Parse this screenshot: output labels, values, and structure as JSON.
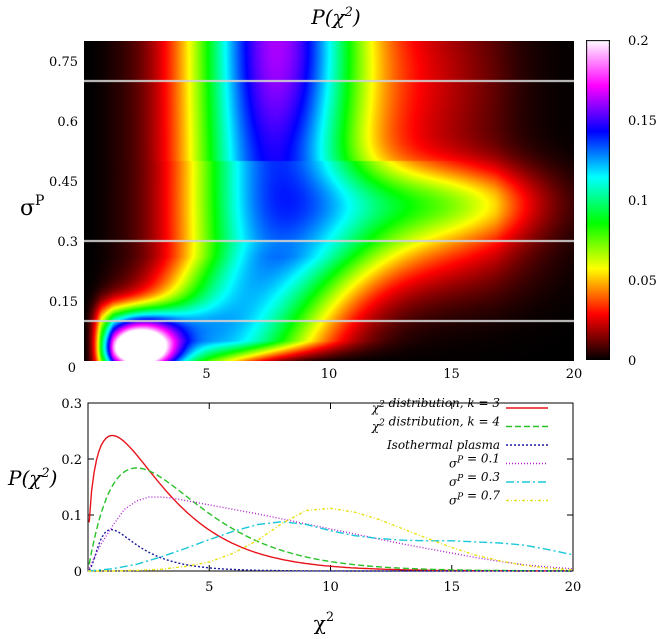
{
  "chart_data": [
    {
      "type": "heatmap",
      "title": "P(χ²)",
      "title_main": "P(χ",
      "title_sup": "2",
      "title_close": ")",
      "xlabel": "",
      "ylabel": "σ^P",
      "ylabel_main": "σ",
      "ylabel_sup": "P",
      "xlim": [
        0,
        20
      ],
      "ylim": [
        0,
        0.8
      ],
      "xticks": [
        5,
        10,
        15,
        20
      ],
      "xtick_labels": [
        "5",
        "10",
        "15",
        "20"
      ],
      "yticks": [
        0.15,
        0.3,
        0.45,
        0.6,
        0.75
      ],
      "ytick_labels": [
        "0.15",
        "0.3",
        "0.45",
        "0.6",
        "0.75"
      ],
      "origin_label": "0",
      "colorbar": {
        "range": [
          0,
          0.2
        ],
        "ticks": [
          0,
          0.05,
          0.1,
          0.15,
          0.2
        ],
        "tick_labels": [
          "0",
          "0.05",
          "0.1",
          "0.15",
          "0.2"
        ],
        "palette": [
          "#000000",
          "#ff0000",
          "#ffff00",
          "#00ff00",
          "#00ffff",
          "#0000ff",
          "#ff00ff",
          "#ffffff"
        ]
      },
      "reference_lines": {
        "sigma_values": [
          0.1,
          0.3,
          0.7
        ],
        "color": "#d0d0d0"
      }
    },
    {
      "type": "line",
      "title": "",
      "xlabel": "χ²",
      "xlabel_main": "χ",
      "xlabel_sup": "2",
      "ylabel": "P(χ²)",
      "ylabel_main": "P(χ",
      "ylabel_sup": "2",
      "ylabel_close": ")",
      "xlim": [
        0,
        20
      ],
      "ylim": [
        0,
        0.3
      ],
      "xticks": [
        5,
        10,
        15,
        20
      ],
      "xtick_labels": [
        "5",
        "10",
        "15",
        "20"
      ],
      "yticks": [
        0,
        0.1,
        0.2,
        0.3
      ],
      "ytick_labels": [
        "0",
        "0.1",
        "0.2",
        "0.3"
      ],
      "legend_position": "top-right",
      "series": [
        {
          "name": "χ² distribution, k = 3",
          "label": [
            {
              "t": "χ"
            },
            {
              "t": "2",
              "sup": true
            },
            {
              "t": " distribution, k = 3"
            }
          ],
          "color": "#e8141c",
          "dash": "",
          "sample_step": 0.1,
          "function": "chi2k3"
        },
        {
          "name": "χ² distribution, k = 4",
          "label": [
            {
              "t": "χ"
            },
            {
              "t": "2",
              "sup": true
            },
            {
              "t": " distribution, k = 4"
            }
          ],
          "color": "#29c229",
          "dash": "6,3",
          "sample_step": 0.1,
          "function": "chi2k4"
        },
        {
          "name": "Isothermal plasma",
          "label": [
            {
              "t": "Isothermal plasma"
            }
          ],
          "color": "#1a1aa0",
          "dash": "2,2",
          "sample_step": 0.1,
          "function": "iso"
        },
        {
          "name": "σP = 0.1",
          "label": [
            {
              "t": "σ"
            },
            {
              "t": "P",
              "sup": true
            },
            {
              "t": " = 0.1"
            }
          ],
          "color": "#b020d0",
          "dash": "1,2",
          "x": [
            0,
            0.5,
            1,
            1.5,
            2,
            2.5,
            3,
            3.5,
            4,
            5,
            6,
            7,
            8,
            9,
            10,
            11,
            12,
            13,
            14,
            15,
            16,
            17,
            18,
            19,
            20
          ],
          "y": [
            0,
            0.045,
            0.08,
            0.11,
            0.125,
            0.132,
            0.132,
            0.13,
            0.126,
            0.118,
            0.11,
            0.102,
            0.093,
            0.084,
            0.075,
            0.066,
            0.057,
            0.048,
            0.04,
            0.032,
            0.024,
            0.017,
            0.011,
            0.007,
            0.004
          ]
        },
        {
          "name": "σP = 0.3",
          "label": [
            {
              "t": "σ"
            },
            {
              "t": "P",
              "sup": true
            },
            {
              "t": " = 0.3"
            }
          ],
          "color": "#18c8d8",
          "dash": "8,3,2,3",
          "x": [
            0,
            1,
            2,
            3,
            4,
            5,
            6,
            7,
            8,
            9,
            10,
            11,
            12,
            13,
            14,
            15,
            16,
            17,
            18,
            19,
            20
          ],
          "y": [
            0,
            0.004,
            0.012,
            0.025,
            0.04,
            0.056,
            0.071,
            0.083,
            0.088,
            0.083,
            0.072,
            0.063,
            0.058,
            0.055,
            0.054,
            0.054,
            0.052,
            0.05,
            0.046,
            0.038,
            0.029
          ]
        },
        {
          "name": "σP = 0.7",
          "label": [
            {
              "t": "σ"
            },
            {
              "t": "P",
              "sup": true
            },
            {
              "t": " = 0.7"
            }
          ],
          "color": "#e8e018",
          "dash": "3,2,1,2",
          "x": [
            0,
            1,
            2,
            3,
            4,
            5,
            6,
            7,
            8,
            9,
            10,
            11,
            12,
            13,
            14,
            15,
            16,
            17,
            18,
            19,
            20
          ],
          "y": [
            0,
            0,
            0.001,
            0.003,
            0.008,
            0.016,
            0.032,
            0.055,
            0.085,
            0.108,
            0.112,
            0.105,
            0.092,
            0.075,
            0.058,
            0.042,
            0.028,
            0.018,
            0.01,
            0.005,
            0.002
          ]
        }
      ]
    }
  ]
}
